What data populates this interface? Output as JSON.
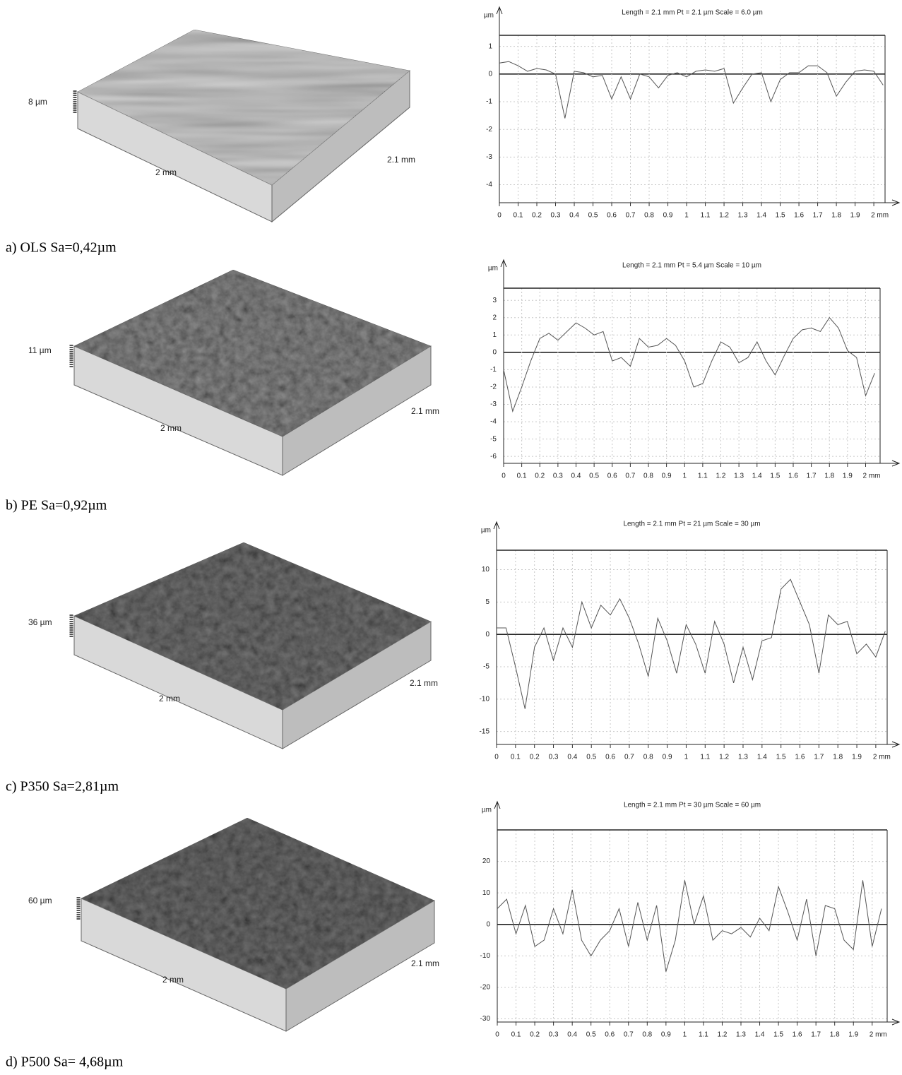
{
  "surfaces": [
    {
      "z_label": "8 µm",
      "x_label": "2 mm",
      "y_label": "2.1 mm",
      "caption": "a) OLS Sa=0,42µm"
    },
    {
      "z_label": "11 µm",
      "x_label": "2 mm",
      "y_label": "2.1 mm",
      "caption": "b) PE Sa=0,92µm"
    },
    {
      "z_label": "36 µm",
      "x_label": "2 mm",
      "y_label": "2.1 mm",
      "caption": "c) P350 Sa=2,81µm"
    },
    {
      "z_label": "60 µm",
      "x_label": "2 mm",
      "y_label": "2.1 mm",
      "caption": "d) P500 Sa= 4,68µm"
    }
  ],
  "chart_data": [
    {
      "type": "line",
      "title": "Length = 2.1 mm  Pt = 2.1 µm  Scale = 6.0 µm",
      "y_label": "µm",
      "color": "#555555",
      "grid": true,
      "x": [
        0,
        0.05,
        0.1,
        0.15,
        0.2,
        0.25,
        0.3,
        0.35,
        0.4,
        0.45,
        0.5,
        0.55,
        0.6,
        0.65,
        0.7,
        0.75,
        0.8,
        0.85,
        0.9,
        0.95,
        1,
        1.05,
        1.1,
        1.15,
        1.2,
        1.25,
        1.3,
        1.35,
        1.4,
        1.45,
        1.5,
        1.55,
        1.6,
        1.65,
        1.7,
        1.75,
        1.8,
        1.85,
        1.9,
        1.95,
        2,
        2.05
      ],
      "values": [
        0.4,
        0.45,
        0.3,
        0.1,
        0.2,
        0.15,
        0,
        -1.6,
        0.1,
        0.05,
        -0.1,
        -0.05,
        -0.9,
        -0.1,
        -0.9,
        0,
        -0.1,
        -0.5,
        -0.05,
        0.05,
        -0.1,
        0.1,
        0.15,
        0.1,
        0.2,
        -1.05,
        -0.5,
        0,
        0.05,
        -1.0,
        -0.2,
        0.05,
        0.05,
        0.3,
        0.3,
        0.05,
        -0.8,
        -0.3,
        0.1,
        0.15,
        0.1,
        -0.4
      ],
      "xlim": [
        0,
        2.06
      ],
      "ylim": [
        -4.65,
        1.4
      ],
      "xticks": [
        0,
        0.1,
        0.2,
        0.3,
        0.4,
        0.5,
        0.6,
        0.7,
        0.8,
        0.9,
        1,
        1.1,
        1.2,
        1.3,
        1.4,
        1.5,
        1.6,
        1.7,
        1.8,
        1.9,
        {
          "value": 2,
          "label": "2 mm"
        }
      ],
      "yticks": [
        1,
        0,
        -1,
        -2,
        -3,
        -4
      ]
    },
    {
      "type": "line",
      "title": "Length = 2.1 mm  Pt = 5.4 µm  Scale = 10 µm",
      "y_label": "µm",
      "color": "#555555",
      "grid": true,
      "x": [
        0,
        0.05,
        0.1,
        0.15,
        0.2,
        0.25,
        0.3,
        0.35,
        0.4,
        0.45,
        0.5,
        0.55,
        0.6,
        0.65,
        0.7,
        0.75,
        0.8,
        0.85,
        0.9,
        0.95,
        1,
        1.05,
        1.1,
        1.15,
        1.2,
        1.25,
        1.3,
        1.35,
        1.4,
        1.45,
        1.5,
        1.55,
        1.6,
        1.65,
        1.7,
        1.75,
        1.8,
        1.85,
        1.9,
        1.95,
        2,
        2.05
      ],
      "values": [
        -1,
        -3.4,
        -2,
        -0.5,
        0.8,
        1.1,
        0.7,
        1.2,
        1.7,
        1.4,
        1.0,
        1.2,
        -0.5,
        -0.3,
        -0.8,
        0.8,
        0.3,
        0.4,
        0.8,
        0.4,
        -0.5,
        -2.0,
        -1.8,
        -0.5,
        0.6,
        0.3,
        -0.6,
        -0.3,
        0.6,
        -0.5,
        -1.3,
        -0.2,
        0.8,
        1.3,
        1.4,
        1.2,
        2.0,
        1.4,
        0.1,
        -0.3,
        -2.5,
        -1.2
      ],
      "xlim": [
        0,
        2.08
      ],
      "ylim": [
        -6.4,
        3.7
      ],
      "xticks": [
        0,
        0.1,
        0.2,
        0.3,
        0.4,
        0.5,
        0.6,
        0.7,
        0.8,
        0.9,
        1,
        1.1,
        1.2,
        1.3,
        1.4,
        1.5,
        1.6,
        1.7,
        1.8,
        1.9,
        {
          "value": 2,
          "label": "2 mm"
        }
      ],
      "yticks": [
        3,
        2,
        1,
        0,
        -1,
        -2,
        -3,
        -4,
        -5,
        -6
      ]
    },
    {
      "type": "line",
      "title": "Length = 2.1 mm  Pt = 21 µm  Scale = 30 µm",
      "y_label": "µm",
      "color": "#555555",
      "grid": true,
      "x": [
        0,
        0.05,
        0.1,
        0.15,
        0.2,
        0.25,
        0.3,
        0.35,
        0.4,
        0.45,
        0.5,
        0.55,
        0.6,
        0.65,
        0.7,
        0.75,
        0.8,
        0.85,
        0.9,
        0.95,
        1,
        1.05,
        1.1,
        1.15,
        1.2,
        1.25,
        1.3,
        1.35,
        1.4,
        1.45,
        1.5,
        1.55,
        1.6,
        1.65,
        1.7,
        1.75,
        1.8,
        1.85,
        1.9,
        1.95,
        2,
        2.05
      ],
      "values": [
        1,
        1,
        -5,
        -11.5,
        -2,
        1,
        -4,
        1,
        -2,
        5,
        1,
        4.5,
        3,
        5.5,
        2.5,
        -1.5,
        -6.5,
        2.5,
        -1,
        -6,
        1.5,
        -1.5,
        -6,
        2,
        -1.5,
        -7.5,
        -2,
        -7,
        -1,
        -0.5,
        7,
        8.5,
        5,
        1.5,
        -6,
        3,
        1.5,
        2,
        -3,
        -1.5,
        -3.5,
        0.5
      ],
      "xlim": [
        0,
        2.06
      ],
      "ylim": [
        -17,
        13
      ],
      "xticks": [
        0,
        0.1,
        0.2,
        0.3,
        0.4,
        0.5,
        0.6,
        0.7,
        0.8,
        0.9,
        1,
        1.1,
        1.2,
        1.3,
        1.4,
        1.5,
        1.6,
        1.7,
        1.8,
        1.9,
        {
          "value": 2,
          "label": "2 mm"
        }
      ],
      "yticks": [
        10,
        5,
        0,
        -5,
        -10,
        -15
      ]
    },
    {
      "type": "line",
      "title": "Length = 2.1 mm  Pt = 30 µm  Scale = 60 µm",
      "y_label": "µm",
      "color": "#555555",
      "grid": true,
      "x": [
        0,
        0.05,
        0.1,
        0.15,
        0.2,
        0.25,
        0.3,
        0.35,
        0.4,
        0.45,
        0.5,
        0.55,
        0.6,
        0.65,
        0.7,
        0.75,
        0.8,
        0.85,
        0.9,
        0.95,
        1,
        1.05,
        1.1,
        1.15,
        1.2,
        1.25,
        1.3,
        1.35,
        1.4,
        1.45,
        1.5,
        1.55,
        1.6,
        1.65,
        1.7,
        1.75,
        1.8,
        1.85,
        1.9,
        1.95,
        2,
        2.05
      ],
      "values": [
        5,
        8,
        -3,
        6,
        -7,
        -5,
        5,
        -3,
        11,
        -5,
        -10,
        -5,
        -2,
        5,
        -7,
        7,
        -5,
        6,
        -15,
        -5,
        14,
        0,
        9,
        -5,
        -2,
        -3,
        -1,
        -4,
        2,
        -2,
        12,
        4,
        -5,
        8,
        -10,
        6,
        5,
        -5,
        -8,
        14,
        -7,
        5
      ],
      "xlim": [
        0,
        2.08
      ],
      "ylim": [
        -31,
        30
      ],
      "xticks": [
        0,
        0.1,
        0.2,
        0.3,
        0.4,
        0.5,
        0.6,
        0.7,
        0.8,
        0.9,
        1,
        1.1,
        1.2,
        1.3,
        1.4,
        1.5,
        1.6,
        1.7,
        1.8,
        1.9,
        {
          "value": 2,
          "label": "2 mm"
        }
      ],
      "yticks": [
        20,
        10,
        0,
        -10,
        -20,
        -30
      ]
    }
  ]
}
